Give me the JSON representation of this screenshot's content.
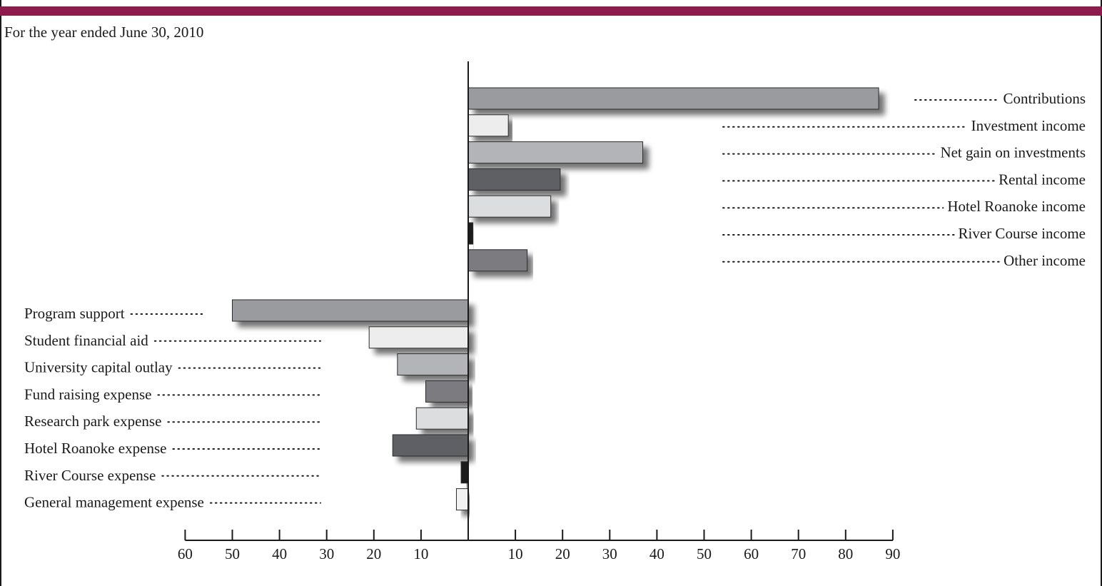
{
  "header": {
    "accent_color": "#8b1c4c",
    "subtitle": "For the year ended June 30, 2010"
  },
  "chart_data": {
    "type": "bar",
    "orientation": "horizontal-diverging",
    "title": "For the year ended June 30, 2010",
    "xlabel": "",
    "ylabel": "",
    "xlim": [
      -60,
      90
    ],
    "grid": false,
    "tick_values": [
      -60,
      -50,
      -40,
      -30,
      -20,
      -10,
      10,
      20,
      30,
      40,
      50,
      60,
      70,
      80,
      90
    ],
    "tick_labels": [
      "60",
      "50",
      "40",
      "30",
      "20",
      "10",
      "10",
      "20",
      "30",
      "40",
      "50",
      "60",
      "70",
      "80",
      "90"
    ],
    "income": [
      {
        "label": "Contributions",
        "value": 87,
        "color": "#9a9b9f"
      },
      {
        "label": "Investment income",
        "value": 8.5,
        "color": "#ededed"
      },
      {
        "label": "Net gain on investments",
        "value": 37,
        "color": "#b3b4b8"
      },
      {
        "label": "Rental income",
        "value": 19.5,
        "color": "#5f6064"
      },
      {
        "label": "Hotel Roanoke income",
        "value": 17.5,
        "color": "#dcdddf"
      },
      {
        "label": "River Course income",
        "value": 1,
        "color": "#1e1e1e"
      },
      {
        "label": "Other income",
        "value": 12.5,
        "color": "#7b7c80"
      }
    ],
    "expenses": [
      {
        "label": "Program support",
        "value": 50,
        "color": "#9a9b9f"
      },
      {
        "label": "Student financial aid",
        "value": 21,
        "color": "#ededed"
      },
      {
        "label": "University capital outlay",
        "value": 15,
        "color": "#b3b4b8"
      },
      {
        "label": "Fund raising expense",
        "value": 9,
        "color": "#7b7c80"
      },
      {
        "label": "Research park expense",
        "value": 11,
        "color": "#dcdddf"
      },
      {
        "label": "Hotel Roanoke expense",
        "value": 16,
        "color": "#5f6064"
      },
      {
        "label": "River Course expense",
        "value": 1.5,
        "color": "#1e1e1e"
      },
      {
        "label": "General management expense",
        "value": 2.5,
        "color": "#f2f2f2"
      }
    ]
  }
}
